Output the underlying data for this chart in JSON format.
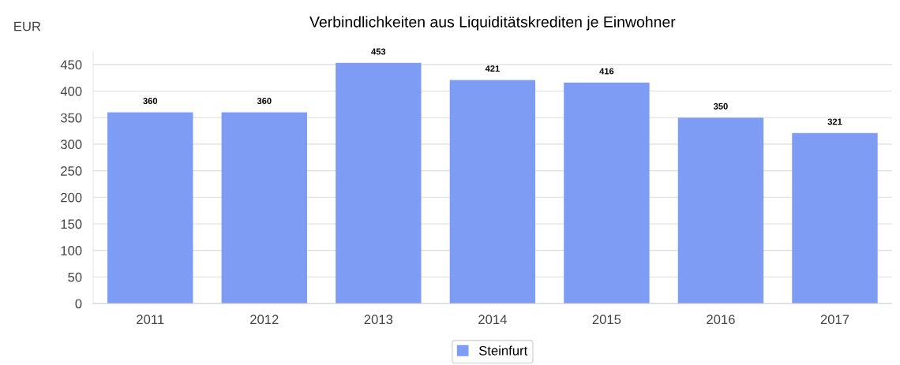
{
  "chart_data": {
    "type": "bar",
    "title": "Verbindlichkeiten aus Liquiditätskrediten je Einwohner",
    "ylabel": "EUR",
    "categories": [
      "2011",
      "2012",
      "2013",
      "2014",
      "2015",
      "2016",
      "2017"
    ],
    "series": [
      {
        "name": "Steinfurt",
        "color": "#7f9cf5",
        "values": [
          360,
          360,
          453,
          421,
          416,
          350,
          321
        ]
      }
    ],
    "ylim": [
      0,
      475
    ],
    "yticks": [
      0,
      50,
      100,
      150,
      200,
      250,
      300,
      350,
      400,
      450
    ],
    "grid": "y",
    "legend": "bottom",
    "data_labels": true
  }
}
